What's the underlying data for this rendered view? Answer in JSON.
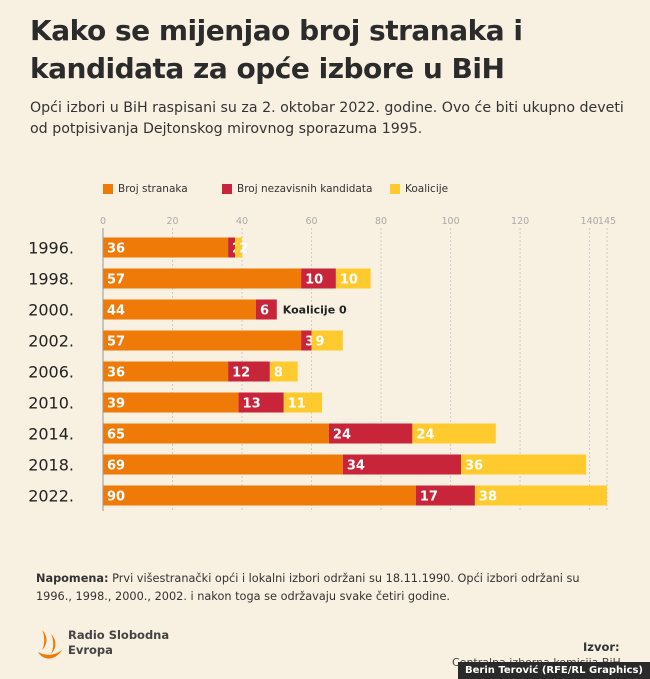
{
  "title": "Kako se mijenjao broj stranaka i kandidata za opće izbore u BiH",
  "subtitle": "Opći izbori u BiH raspisani su za 2. oktobar 2022. godine. Ovo će biti ukupno deveti od potpisivanja Dejtonskog mirovnog sporazuma 1995.",
  "colors": {
    "background": "#f8f0e1",
    "stranke": "#ef7a08",
    "nezavisni": "#c8243a",
    "koalicije": "#ffca2e",
    "grid": "#cccccc",
    "tick": "#aaaaaa"
  },
  "chart_data": {
    "type": "bar",
    "orientation": "horizontal",
    "stacked": true,
    "categories": [
      "1996.",
      "1998.",
      "2000.",
      "2002.",
      "2006.",
      "2010.",
      "2014.",
      "2018.",
      "2022."
    ],
    "series": [
      {
        "name": "Broj stranaka",
        "values": [
          36,
          57,
          44,
          57,
          36,
          39,
          65,
          69,
          90
        ]
      },
      {
        "name": "Broj nezavisnih kandidata",
        "values": [
          2,
          10,
          6,
          3,
          12,
          13,
          24,
          34,
          17
        ]
      },
      {
        "name": "Koalicije",
        "values": [
          2,
          10,
          0,
          9,
          8,
          11,
          24,
          36,
          38
        ]
      }
    ],
    "annotations": [
      {
        "category": "2000.",
        "text": "Koalicije 0"
      }
    ],
    "x_ticks": [
      0,
      20,
      40,
      60,
      80,
      100,
      120,
      140,
      145
    ],
    "xlim": [
      0,
      145
    ],
    "grid": true,
    "legend_position": "top"
  },
  "note": {
    "label": "Napomena:",
    "text": " Prvi višestranački opći i lokalni izbori održani su 18.11.1990. Opći izbori održani su 1996., 1998., 2000., 2002. i nakon toga se održavaju svake četiri godine."
  },
  "logo": {
    "line1": "Radio Slobodna",
    "line2": "Evropa"
  },
  "source": {
    "label": "Izvor:",
    "text": "Centralna izborna komisija BiH"
  },
  "credit": "Berin Terović (RFE/RL Graphics)"
}
